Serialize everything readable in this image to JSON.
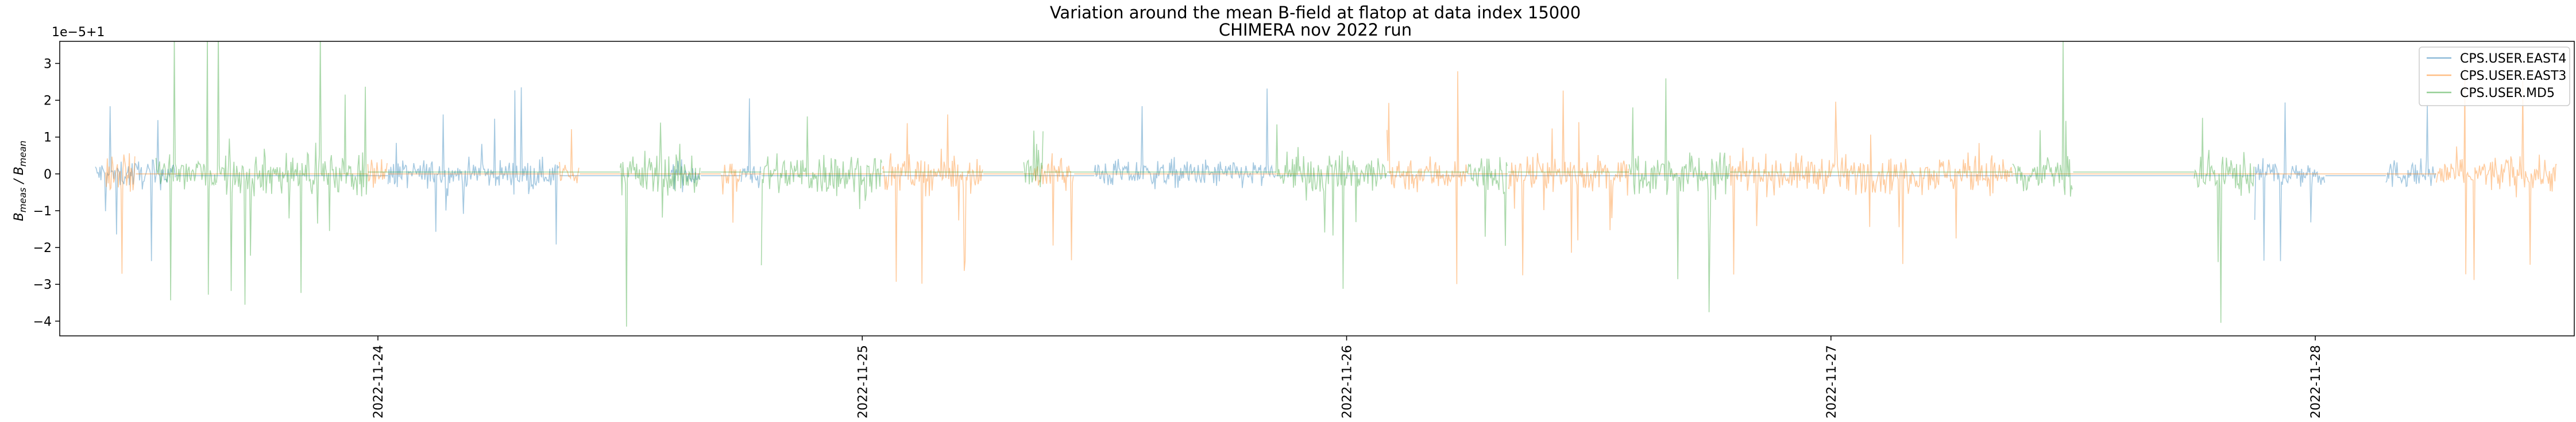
{
  "chart_data": {
    "type": "line",
    "title": "Variation around the mean B-field at flatop at data index 15000",
    "subtitle": "CHIMERA nov 2022 run",
    "ylabel": "B_meas / B_mean",
    "y_offset_label": "1e−5+1",
    "ylim": [
      -4.4,
      3.6
    ],
    "y_ticks": [
      -4,
      -3,
      -2,
      -1,
      0,
      1,
      2,
      3
    ],
    "y_tick_labels": [
      "−4",
      "−3",
      "−2",
      "−1",
      "0",
      "1",
      "2",
      "3"
    ],
    "x_ticks": [
      "2022-11-24",
      "2022-11-25",
      "2022-11-26",
      "2022-11-27",
      "2022-11-28"
    ],
    "xlim": [
      "2022-11-23 08:14",
      "2022-11-28 12:50"
    ],
    "grid": false,
    "legend_position": "top-right",
    "series": [
      {
        "name": "CPS.USER.EAST4",
        "color": "#1f77b4",
        "segments": [
          [
            "2022-11-23 10:00",
            "2022-11-23 14:00"
          ],
          [
            "2022-11-24 00:30",
            "2022-11-24 09:00"
          ],
          [
            "2022-11-24 14:30",
            "2022-11-24 16:00"
          ],
          [
            "2022-11-24 18:00",
            "2022-11-24 19:00"
          ],
          [
            "2022-11-25 11:30",
            "2022-11-25 20:30"
          ],
          [
            "2022-11-27 21:00",
            "2022-11-28 00:30"
          ],
          [
            "2022-11-28 03:30",
            "2022-11-28 06:00"
          ]
        ]
      },
      {
        "name": "CPS.USER.EAST3",
        "color": "#ff7f0e",
        "segments": [
          [
            "2022-11-23 10:30",
            "2022-11-23 12:00"
          ],
          [
            "2022-11-23 23:30",
            "2022-11-24 00:30"
          ],
          [
            "2022-11-24 09:00",
            "2022-11-24 10:00"
          ],
          [
            "2022-11-24 17:00",
            "2022-11-24 18:00"
          ],
          [
            "2022-11-25 01:00",
            "2022-11-25 06:00"
          ],
          [
            "2022-11-25 08:30",
            "2022-11-25 10:30"
          ],
          [
            "2022-11-26 02:00",
            "2022-11-26 06:00"
          ],
          [
            "2022-11-26 08:00",
            "2022-11-26 14:00"
          ],
          [
            "2022-11-26 19:00",
            "2022-11-27 09:00"
          ],
          [
            "2022-11-28 06:00",
            "2022-11-28 12:00"
          ]
        ]
      },
      {
        "name": "CPS.USER.MD5",
        "color": "#2ca02c",
        "segments": [
          [
            "2022-11-23 13:00",
            "2022-11-23 16:00"
          ],
          [
            "2022-11-23 16:00",
            "2022-11-23 23:30"
          ],
          [
            "2022-11-24 12:00",
            "2022-11-24 16:00"
          ],
          [
            "2022-11-24 19:00",
            "2022-11-25 01:00"
          ],
          [
            "2022-11-25 08:00",
            "2022-11-25 09:00"
          ],
          [
            "2022-11-25 20:30",
            "2022-11-26 02:00"
          ],
          [
            "2022-11-26 06:00",
            "2022-11-26 08:00"
          ],
          [
            "2022-11-26 14:00",
            "2022-11-26 19:00"
          ],
          [
            "2022-11-27 09:00",
            "2022-11-27 12:00"
          ],
          [
            "2022-11-27 18:00",
            "2022-11-27 21:00"
          ]
        ]
      }
    ]
  }
}
